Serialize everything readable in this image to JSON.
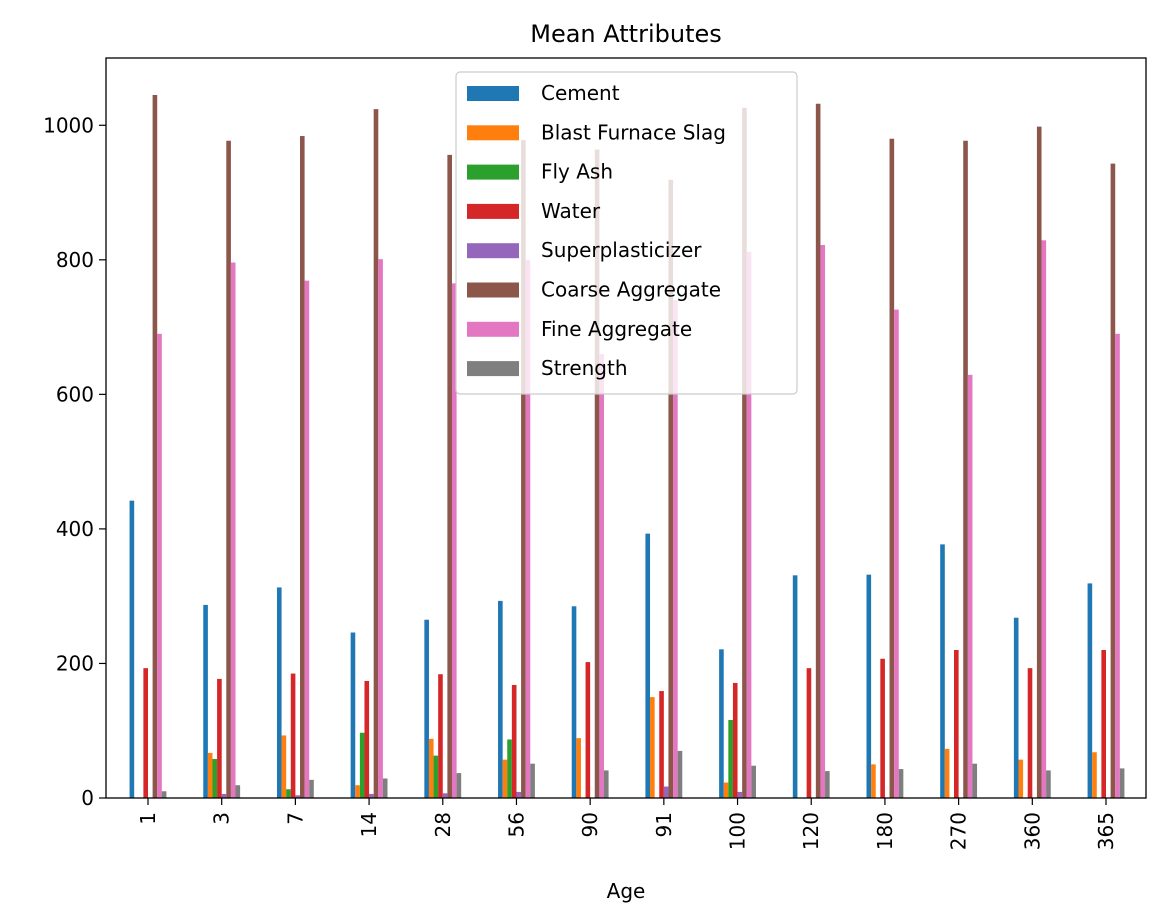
{
  "chart_data": {
    "type": "bar",
    "title": "Mean Attributes",
    "xlabel": "Age",
    "ylabel": "",
    "ylim": [
      0,
      1100
    ],
    "yticks": [
      0,
      200,
      400,
      600,
      800,
      1000
    ],
    "grid": false,
    "legend_position": "top-center",
    "categories": [
      "1",
      "3",
      "7",
      "14",
      "28",
      "56",
      "90",
      "91",
      "100",
      "120",
      "180",
      "270",
      "360",
      "365"
    ],
    "series": [
      {
        "name": "Cement",
        "color": "#1f77b4",
        "values": [
          442,
          287,
          313,
          246,
          265,
          293,
          285,
          393,
          221,
          331,
          332,
          377,
          268,
          319
        ]
      },
      {
        "name": "Blast Furnace Slag",
        "color": "#ff7f0e",
        "values": [
          0,
          67,
          93,
          19,
          88,
          57,
          89,
          150,
          23,
          0,
          50,
          73,
          57,
          68
        ]
      },
      {
        "name": "Fly Ash",
        "color": "#2ca02c",
        "values": [
          0,
          58,
          13,
          97,
          63,
          87,
          0,
          0,
          116,
          0,
          0,
          0,
          0,
          0
        ]
      },
      {
        "name": "Water",
        "color": "#d62728",
        "values": [
          193,
          177,
          185,
          174,
          184,
          168,
          202,
          159,
          171,
          193,
          207,
          220,
          193,
          220
        ]
      },
      {
        "name": "Superplasticizer",
        "color": "#9467bd",
        "values": [
          0,
          6,
          4,
          6,
          7,
          9,
          0,
          17,
          9,
          0,
          0,
          0,
          0,
          0
        ]
      },
      {
        "name": "Coarse Aggregate",
        "color": "#8c564b",
        "values": [
          1045,
          977,
          984,
          1024,
          956,
          978,
          964,
          919,
          1026,
          1032,
          980,
          977,
          998,
          943
        ]
      },
      {
        "name": "Fine Aggregate",
        "color": "#e377c2",
        "values": [
          690,
          796,
          769,
          801,
          765,
          800,
          660,
          740,
          812,
          822,
          726,
          629,
          829,
          690
        ]
      },
      {
        "name": "Strength",
        "color": "#7f7f7f",
        "values": [
          10,
          19,
          27,
          29,
          37,
          51,
          41,
          70,
          48,
          40,
          43,
          51,
          41,
          44
        ]
      }
    ]
  }
}
